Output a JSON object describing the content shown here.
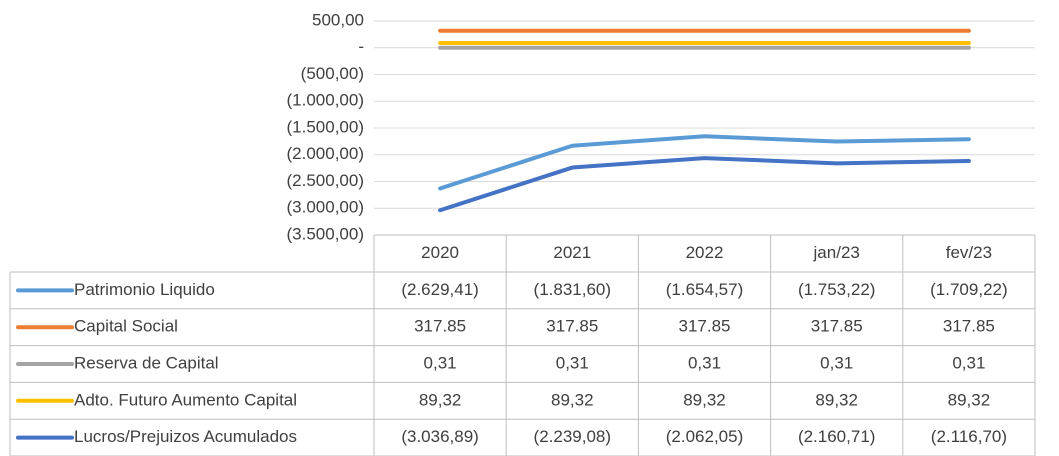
{
  "chart_data": {
    "type": "line",
    "categories": [
      "2020",
      "2021",
      "2022",
      "jan/23",
      "fev/23"
    ],
    "series": [
      {
        "name": "Patrimonio Liquido",
        "color": "#5b9bd5",
        "values": [
          -2629.41,
          -1831.6,
          -1654.57,
          -1753.22,
          -1709.22
        ],
        "value_labels": [
          "(2.629,41)",
          "(1.831,60)",
          "(1.654,57)",
          "(1.753,22)",
          "(1.709,22)"
        ]
      },
      {
        "name": "Capital Social",
        "color": "#ed7d31",
        "values": [
          317.85,
          317.85,
          317.85,
          317.85,
          317.85
        ],
        "value_labels": [
          "317.85",
          "317.85",
          "317.85",
          "317.85",
          "317.85"
        ]
      },
      {
        "name": "Reserva de Capital",
        "color": "#a5a5a5",
        "values": [
          0.31,
          0.31,
          0.31,
          0.31,
          0.31
        ],
        "value_labels": [
          "0,31",
          "0,31",
          "0,31",
          "0,31",
          "0,31"
        ]
      },
      {
        "name": "Adto. Futuro Aumento Capital",
        "color": "#ffc000",
        "values": [
          89.32,
          89.32,
          89.32,
          89.32,
          89.32
        ],
        "value_labels": [
          "89,32",
          "89,32",
          "89,32",
          "89,32",
          "89,32"
        ]
      },
      {
        "name": "Lucros/Prejuizos Acumulados",
        "color": "#4472c4",
        "values": [
          -3036.89,
          -2239.08,
          -2062.05,
          -2160.71,
          -2116.7
        ],
        "value_labels": [
          "(3.036,89)",
          "(2.239,08)",
          "(2.062,05)",
          "(2.160,71)",
          "(2.116,70)"
        ]
      }
    ],
    "ylim": [
      -3500,
      500
    ],
    "yticks": [
      {
        "value": 500,
        "label": "500,00"
      },
      {
        "value": 0,
        "label": "-"
      },
      {
        "value": -500,
        "label": "(500,00)"
      },
      {
        "value": -1000,
        "label": "(1.000,00)"
      },
      {
        "value": -1500,
        "label": "(1.500,00)"
      },
      {
        "value": -2000,
        "label": "(2.000,00)"
      },
      {
        "value": -2500,
        "label": "(2.500,00)"
      },
      {
        "value": -3000,
        "label": "(3.000,00)"
      },
      {
        "value": -3500,
        "label": "(3.500,00)"
      }
    ],
    "grid": true
  }
}
